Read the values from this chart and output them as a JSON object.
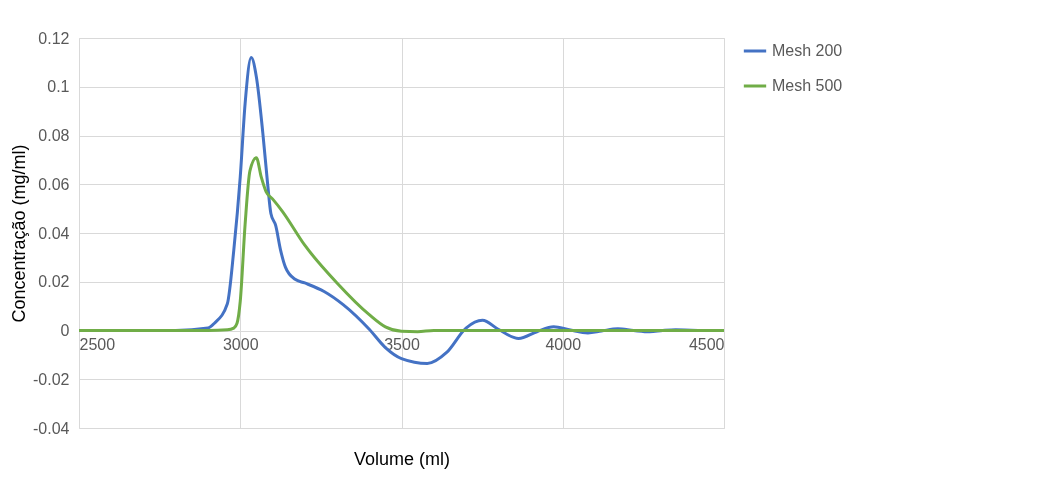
{
  "chart_data": {
    "type": "line",
    "xlabel": "Volume (ml)",
    "ylabel": "Concentração (mg/ml)",
    "xlim": [
      2500,
      4500
    ],
    "xticks": [
      2500,
      3000,
      3500,
      4000,
      4500
    ],
    "ylim": [
      -0.04,
      0.12
    ],
    "yticks": [
      -0.04,
      -0.02,
      0,
      0.02,
      0.04,
      0.06,
      0.08,
      0.1,
      0.12
    ],
    "grid": true,
    "legend": "right",
    "marker": "none",
    "line_style": "solid",
    "series": [
      {
        "name": "Mesh 200",
        "color": "#4472c4",
        "x": [
          2500,
          2800,
          2900,
          2920,
          2960,
          2980,
          3000,
          3015,
          3034,
          3050,
          3070,
          3085,
          3095,
          3110,
          3125,
          3140,
          3170,
          3200,
          3260,
          3320,
          3400,
          3450,
          3500,
          3580,
          3640,
          3700,
          3751,
          3800,
          3863,
          3920,
          3972,
          4020,
          4078,
          4120,
          4171,
          4220,
          4270,
          4310,
          4350,
          4420
        ],
        "values": [
          0,
          0,
          0.001,
          0.003,
          0.011,
          0.033,
          0.063,
          0.093,
          0.112,
          0.104,
          0.081,
          0.06,
          0.048,
          0.043,
          0.033,
          0.026,
          0.021,
          0.0195,
          0.016,
          0.0105,
          0.0005,
          -0.007,
          -0.0115,
          -0.0135,
          -0.009,
          0.001,
          0.0042,
          0.0005,
          -0.0033,
          -0.0005,
          0.0015,
          0.0003,
          -0.001,
          -0.0002,
          0.0007,
          0,
          -0.0005,
          0,
          0.0003,
          0
        ]
      },
      {
        "name": "Mesh 500",
        "color": "#70ad47",
        "x": [
          2500,
          2900,
          2960,
          2980,
          2990,
          3000,
          3015,
          3030,
          3050,
          3065,
          3080,
          3100,
          3130,
          3200,
          3300,
          3400,
          3450,
          3500,
          3550,
          3600,
          4000,
          4500
        ],
        "values": [
          0,
          0,
          0.0003,
          0.001,
          0.003,
          0.012,
          0.0434,
          0.0655,
          0.0709,
          0.063,
          0.057,
          0.054,
          0.049,
          0.035,
          0.0195,
          0.0065,
          0.0015,
          -0.0003,
          -0.0005,
          0,
          0,
          0
        ]
      }
    ]
  }
}
